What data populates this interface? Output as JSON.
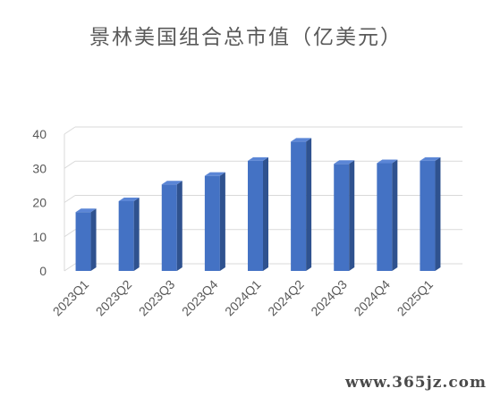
{
  "chart_data": {
    "type": "bar",
    "title": "景林美国组合总市值（亿美元）",
    "categories": [
      "2023Q1",
      "2023Q2",
      "2023Q3",
      "2023Q4",
      "2024Q1",
      "2024Q2",
      "2024Q3",
      "2024Q4",
      "2025Q1"
    ],
    "values": [
      17.2,
      20.4,
      25.3,
      27.8,
      32.2,
      37.8,
      31.3,
      31.5,
      32.2
    ],
    "ylim": [
      0,
      40
    ],
    "yticks": [
      "0",
      "10",
      "20",
      "30",
      "40"
    ],
    "grid": true,
    "legend": "none",
    "bar_color": "#4472C4",
    "bar_side_color": "#2F528F",
    "bar_top_color": "#5B86D6",
    "grid_color": "#d9d9d9"
  },
  "watermark": "www.365jz.com"
}
